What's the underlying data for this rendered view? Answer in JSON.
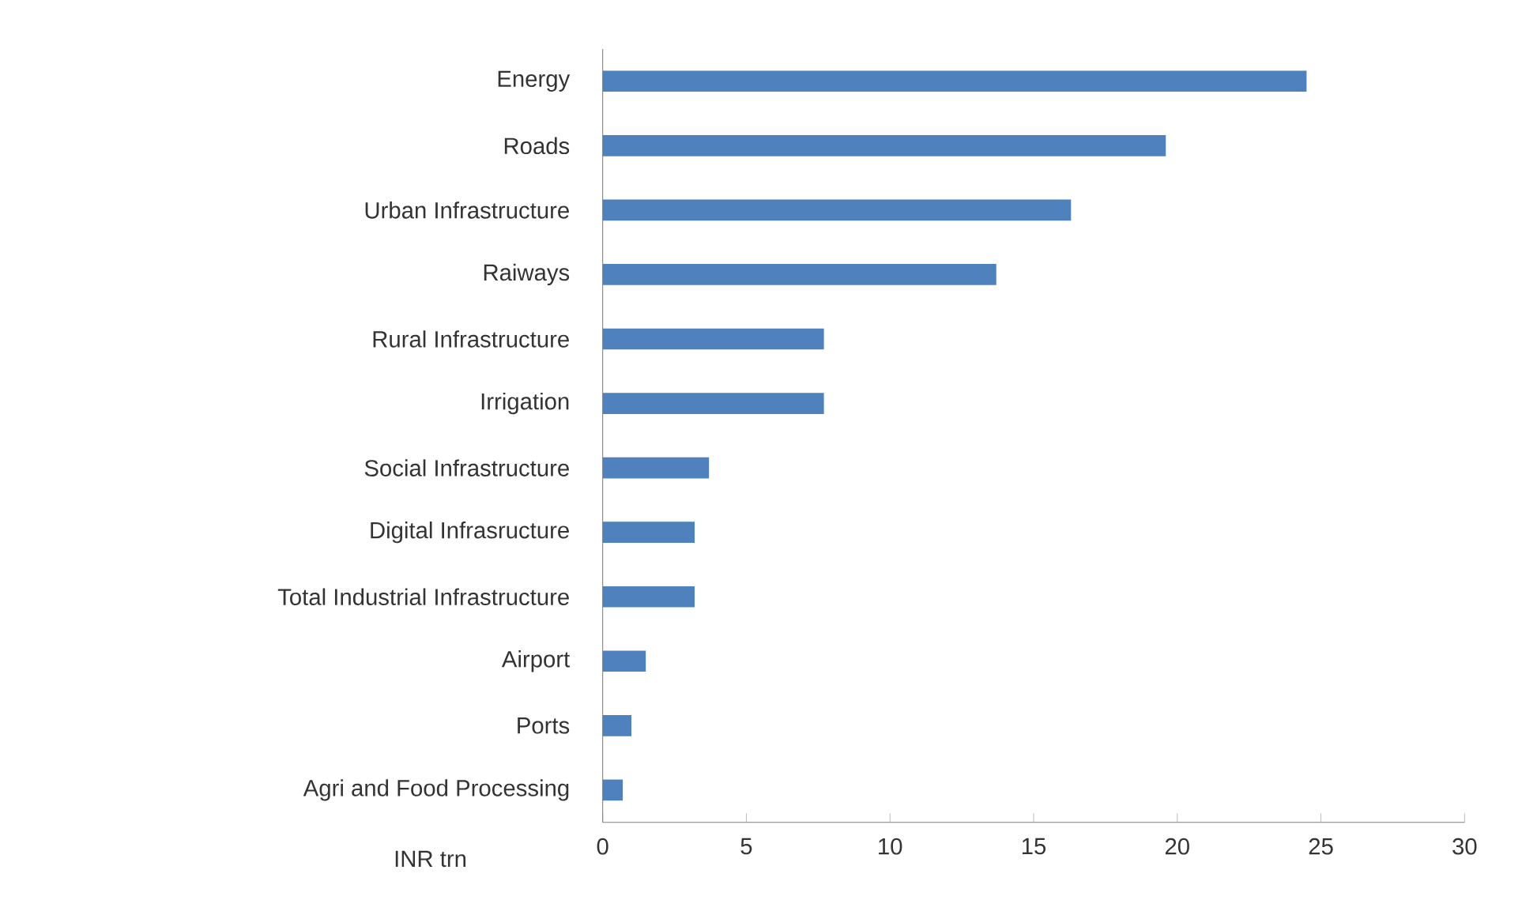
{
  "chart_data": {
    "type": "bar",
    "orientation": "horizontal",
    "xlabel": "INR trn",
    "categories": [
      "Energy",
      "Roads",
      "Urban Infrastructure",
      "Raiways",
      "Rural Infrastructure",
      "Irrigation",
      "Social Infrastructure",
      "Digital Infrasructure",
      "Total Industrial Infrastructure",
      "Airport",
      "Ports",
      "Agri and Food Processing"
    ],
    "values": [
      24.5,
      19.6,
      16.3,
      13.7,
      7.7,
      7.7,
      3.7,
      3.2,
      3.2,
      1.5,
      1.0,
      0.7
    ],
    "color": "#4f81bd",
    "xlim": [
      0,
      30
    ],
    "xticks": [
      0,
      5,
      10,
      15,
      20,
      25,
      30
    ],
    "grid": false
  }
}
